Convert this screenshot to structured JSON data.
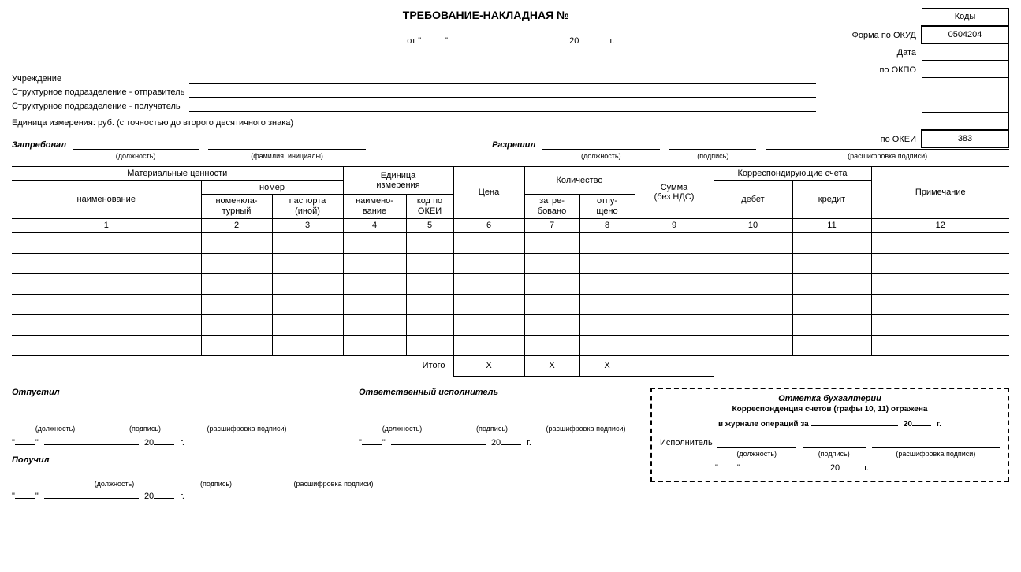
{
  "title": "ТРЕБОВАНИЕ-НАКЛАДНАЯ №",
  "date_prefix": "от \"",
  "date_quote_close": "\"",
  "date_year_prefix": "20",
  "date_year_suffix": "г.",
  "codes_header": "Коды",
  "right_labels": {
    "form_okud": "Форма по ОКУД",
    "date": "Дата",
    "okpo": "по ОКПО",
    "okei": "по ОКЕИ"
  },
  "codes": {
    "okud": "0504204",
    "okei": "383"
  },
  "left_labels": {
    "institution": "Учреждение",
    "sender": "Структурное подразделение - отправитель",
    "receiver": "Структурное подразделение - получатель",
    "unit_measure": "Единица измерения: руб. (с точностью до второго десятичного знака)"
  },
  "requested": "Затребовал",
  "allowed": "Разрешил",
  "captions": {
    "position": "(должность)",
    "fio": "(фамилия, инициалы)",
    "signature": "(подпись)",
    "decrypt": "(расшифровка подписи)",
    "decrypt_short": "(расшифровка подписи)"
  },
  "table": {
    "headers": {
      "materials": "Материальные ценности",
      "name": "наименование",
      "number": "номер",
      "nomenclature": "номенкла-\nтурный",
      "passport": "паспорта\n(иной)",
      "unit": "Единица\nизмерения",
      "unit_name": "наимено-\nвание",
      "okei_code": "код по\nОКЕИ",
      "price": "Цена",
      "quantity": "Количество",
      "requested": "затре-\nбовано",
      "released": "отпу-\nщено",
      "sum": "Сумма\n(без НДС)",
      "accounts": "Корреспондирующие счета",
      "debit": "дебет",
      "credit": "кредит",
      "note": "Примечание"
    },
    "col_nums": [
      "1",
      "2",
      "3",
      "4",
      "5",
      "6",
      "7",
      "8",
      "9",
      "10",
      "11",
      "12"
    ],
    "total": "Итого",
    "x": "Х",
    "body_rows": 6
  },
  "released_by": "Отпустил",
  "responsible": "Ответственный исполнитель",
  "received": "Получил",
  "date_block": {
    "q1": "\"",
    "q2": "\"",
    "y": "20",
    "g": "г."
  },
  "accounting": {
    "title": "Отметка бухгалтерии",
    "line1": "Корреспонденция счетов (графы 10, 11) отражена",
    "line2_a": "в журнале операций за",
    "executor": "Исполнитель"
  }
}
